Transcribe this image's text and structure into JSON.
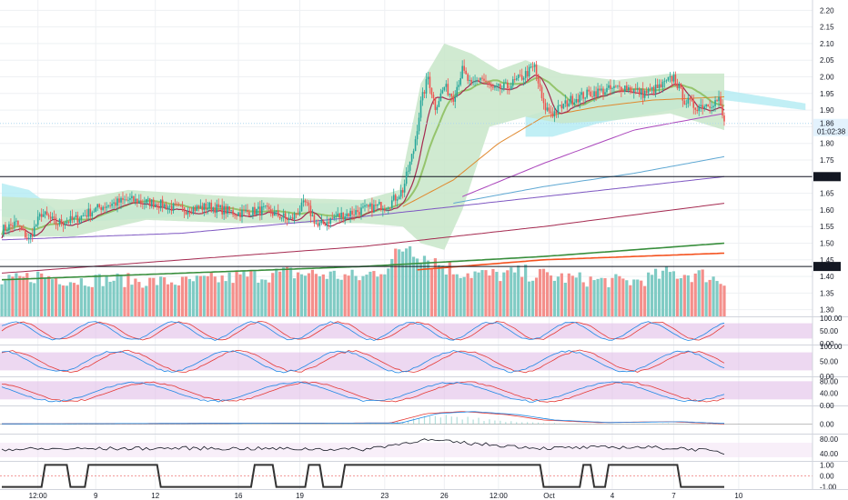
{
  "chart_data": {
    "type": "candlestick",
    "title": "",
    "x_ticks": [
      "12:00",
      "9",
      "12",
      "16",
      "19",
      "23",
      "26",
      "12:00",
      "Oct",
      "4",
      "7",
      "10"
    ],
    "x_tick_bar_index": [
      20,
      52,
      85,
      131,
      165,
      212,
      245,
      275,
      303,
      338,
      372,
      408
    ],
    "price_axis": {
      "ticks": [
        "2.20",
        "2.15",
        "2.10",
        "2.05",
        "2.00",
        "1.95",
        "1.90",
        "1.85",
        "1.80",
        "1.75",
        "1.70",
        "1.65",
        "1.60",
        "1.55",
        "1.50",
        "1.45",
        "1.40",
        "1.35",
        "1.30"
      ],
      "ylim": [
        1.28,
        2.22
      ]
    },
    "horizontal_lines": [
      {
        "value": 1.7,
        "label": "1.70",
        "color": "#131722"
      },
      {
        "value": 1.43,
        "label": "1.43",
        "color": "#131722"
      }
    ],
    "last_price": {
      "label": "1.86",
      "countdown": "01:02:38",
      "value": 1.86
    },
    "price_anchors": [
      [
        0,
        1.54
      ],
      [
        8,
        1.56
      ],
      [
        15,
        1.51
      ],
      [
        22,
        1.59
      ],
      [
        30,
        1.56
      ],
      [
        40,
        1.57
      ],
      [
        55,
        1.61
      ],
      [
        70,
        1.63
      ],
      [
        85,
        1.62
      ],
      [
        100,
        1.6
      ],
      [
        115,
        1.61
      ],
      [
        130,
        1.59
      ],
      [
        145,
        1.6
      ],
      [
        160,
        1.57
      ],
      [
        168,
        1.62
      ],
      [
        175,
        1.55
      ],
      [
        185,
        1.58
      ],
      [
        200,
        1.6
      ],
      [
        215,
        1.62
      ],
      [
        222,
        1.66
      ],
      [
        228,
        1.78
      ],
      [
        232,
        1.92
      ],
      [
        236,
        2.0
      ],
      [
        240,
        1.91
      ],
      [
        245,
        1.97
      ],
      [
        250,
        1.94
      ],
      [
        255,
        2.02
      ],
      [
        260,
        1.97
      ],
      [
        265,
        2.0
      ],
      [
        272,
        1.96
      ],
      [
        280,
        1.97
      ],
      [
        288,
        2.0
      ],
      [
        295,
        2.03
      ],
      [
        300,
        1.91
      ],
      [
        305,
        1.89
      ],
      [
        315,
        1.93
      ],
      [
        325,
        1.95
      ],
      [
        335,
        1.96
      ],
      [
        345,
        1.97
      ],
      [
        355,
        1.95
      ],
      [
        365,
        1.97
      ],
      [
        372,
        2.0
      ],
      [
        378,
        1.93
      ],
      [
        384,
        1.91
      ],
      [
        392,
        1.92
      ],
      [
        397,
        1.93
      ],
      [
        400,
        1.86
      ]
    ],
    "volume_anchors": [
      [
        0,
        0.45
      ],
      [
        20,
        0.55
      ],
      [
        40,
        0.48
      ],
      [
        60,
        0.5
      ],
      [
        80,
        0.47
      ],
      [
        100,
        0.46
      ],
      [
        120,
        0.5
      ],
      [
        140,
        0.55
      ],
      [
        160,
        0.58
      ],
      [
        180,
        0.56
      ],
      [
        200,
        0.52
      ],
      [
        215,
        0.7
      ],
      [
        225,
        1.0
      ],
      [
        235,
        0.8
      ],
      [
        250,
        0.62
      ],
      [
        270,
        0.55
      ],
      [
        290,
        0.58
      ],
      [
        310,
        0.52
      ],
      [
        330,
        0.48
      ],
      [
        350,
        0.47
      ],
      [
        370,
        0.58
      ],
      [
        390,
        0.55
      ],
      [
        400,
        0.45
      ]
    ],
    "moving_averages": [
      {
        "color": "#e0892f",
        "anchors": [
          [
            222,
            1.61
          ],
          [
            250,
            1.69
          ],
          [
            275,
            1.8
          ],
          [
            300,
            1.88
          ],
          [
            330,
            1.91
          ],
          [
            360,
            1.93
          ],
          [
            400,
            1.94
          ]
        ]
      },
      {
        "color": "#ab47bc",
        "anchors": [
          [
            255,
            1.64
          ],
          [
            300,
            1.74
          ],
          [
            350,
            1.84
          ],
          [
            400,
            1.89
          ]
        ]
      },
      {
        "color": "#5fa8d3",
        "anchors": [
          [
            250,
            1.62
          ],
          [
            300,
            1.67
          ],
          [
            350,
            1.71
          ],
          [
            400,
            1.76
          ]
        ]
      },
      {
        "color": "#7e57c2",
        "anchors": [
          [
            0,
            1.51
          ],
          [
            100,
            1.53
          ],
          [
            200,
            1.58
          ],
          [
            300,
            1.64
          ],
          [
            400,
            1.7
          ]
        ]
      },
      {
        "color": "#a52a50",
        "anchors": [
          [
            0,
            1.41
          ],
          [
            100,
            1.45
          ],
          [
            200,
            1.49
          ],
          [
            300,
            1.55
          ],
          [
            400,
            1.62
          ]
        ]
      },
      {
        "color": "#388e3c",
        "anchors": [
          [
            0,
            1.39
          ],
          [
            100,
            1.41
          ],
          [
            200,
            1.43
          ],
          [
            300,
            1.46
          ],
          [
            400,
            1.5
          ]
        ]
      },
      {
        "color": "#f4511e",
        "anchors": [
          [
            230,
            1.42
          ],
          [
            300,
            1.45
          ],
          [
            400,
            1.47
          ]
        ]
      }
    ],
    "indicator_panes": [
      {
        "ticks": [
          "100.00",
          "50.00",
          "0.00"
        ],
        "range": [
          0,
          100
        ],
        "band": [
          20,
          80
        ],
        "band_color": "#e1bee7"
      },
      {
        "ticks": [
          "100.00",
          "50.00",
          "0.00"
        ],
        "range": [
          0,
          100
        ],
        "band": [
          20,
          80
        ],
        "band_color": "#e1bee7"
      },
      {
        "ticks": [
          "80.00",
          "40.00",
          "0.00"
        ],
        "range": [
          0,
          90
        ],
        "band": [
          20,
          80
        ],
        "band_color": "#e1bee7"
      },
      {
        "ticks": [
          "0.00"
        ],
        "range": [
          -0.04,
          0.08
        ],
        "band": null,
        "band_color": ""
      },
      {
        "ticks": [
          "80.00",
          "40.00"
        ],
        "range": [
          20,
          90
        ],
        "band": [
          30,
          70
        ],
        "band_color": "#f3e5f5"
      },
      {
        "ticks": [
          "1.00",
          "0.00",
          "-1.00"
        ],
        "range": [
          -1.2,
          1.2
        ],
        "band": null,
        "band_color": ""
      }
    ],
    "binary_signal": {
      "high_ranges": [
        [
          22,
          38
        ],
        [
          46,
          88
        ],
        [
          138,
          152
        ],
        [
          168,
          178
        ],
        [
          188,
          300
        ],
        [
          320,
          328
        ],
        [
          334,
          376
        ]
      ]
    },
    "colors": {
      "up": "#26a69a",
      "down": "#ef5350",
      "ichimoku_cloud": "#b2ebf2",
      "bollinger_fill": "#c8e6c9",
      "price_line": "#a52a50",
      "grid": "#eef0f3"
    }
  }
}
